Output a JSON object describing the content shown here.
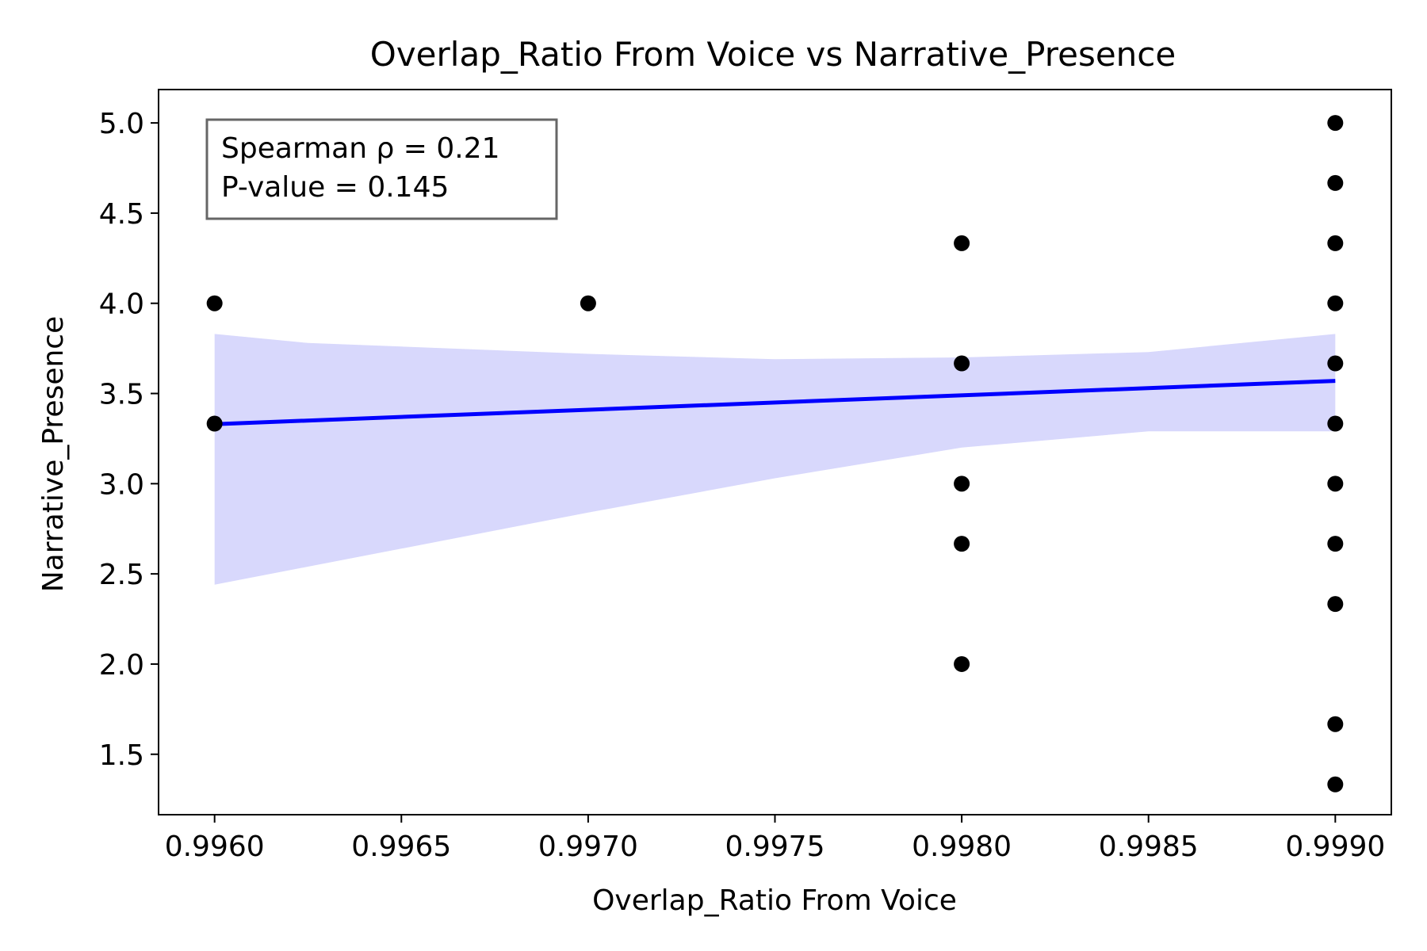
{
  "chart_data": {
    "type": "scatter",
    "title": "Overlap_Ratio From Voice vs Narrative_Presence",
    "xlabel": "Overlap_Ratio From Voice",
    "ylabel": "Narrative_Presence",
    "xlim": [
      0.99585,
      0.99915
    ],
    "ylim": [
      1.165,
      5.185
    ],
    "x_ticks": [
      "0.9960",
      "0.9965",
      "0.9970",
      "0.9975",
      "0.9980",
      "0.9985",
      "0.9990"
    ],
    "y_ticks": [
      "1.5",
      "2.0",
      "2.5",
      "3.0",
      "3.5",
      "4.0",
      "4.5",
      "5.0"
    ],
    "grid": false,
    "points": [
      {
        "x": 0.996,
        "y": 4.0
      },
      {
        "x": 0.996,
        "y": 3.333
      },
      {
        "x": 0.997,
        "y": 4.0
      },
      {
        "x": 0.998,
        "y": 4.333
      },
      {
        "x": 0.998,
        "y": 3.667
      },
      {
        "x": 0.998,
        "y": 3.0
      },
      {
        "x": 0.998,
        "y": 2.667
      },
      {
        "x": 0.998,
        "y": 2.0
      },
      {
        "x": 0.999,
        "y": 5.0
      },
      {
        "x": 0.999,
        "y": 4.667
      },
      {
        "x": 0.999,
        "y": 4.333
      },
      {
        "x": 0.999,
        "y": 4.0
      },
      {
        "x": 0.999,
        "y": 3.667
      },
      {
        "x": 0.999,
        "y": 3.333
      },
      {
        "x": 0.999,
        "y": 3.0
      },
      {
        "x": 0.999,
        "y": 2.667
      },
      {
        "x": 0.999,
        "y": 2.333
      },
      {
        "x": 0.999,
        "y": 1.667
      },
      {
        "x": 0.999,
        "y": 1.333
      }
    ],
    "regression_line": [
      {
        "x": 0.996,
        "y": 3.33
      },
      {
        "x": 0.999,
        "y": 3.57
      }
    ],
    "confidence_band": {
      "upper": [
        {
          "x": 0.996,
          "y": 3.83
        },
        {
          "x": 0.99625,
          "y": 3.78
        },
        {
          "x": 0.9965,
          "y": 3.76
        },
        {
          "x": 0.99675,
          "y": 3.74
        },
        {
          "x": 0.997,
          "y": 3.72
        },
        {
          "x": 0.9975,
          "y": 3.69
        },
        {
          "x": 0.998,
          "y": 3.7
        },
        {
          "x": 0.9985,
          "y": 3.73
        },
        {
          "x": 0.999,
          "y": 3.83
        }
      ],
      "lower": [
        {
          "x": 0.996,
          "y": 2.44
        },
        {
          "x": 0.99625,
          "y": 2.54
        },
        {
          "x": 0.9965,
          "y": 2.64
        },
        {
          "x": 0.99675,
          "y": 2.74
        },
        {
          "x": 0.997,
          "y": 2.84
        },
        {
          "x": 0.9975,
          "y": 3.03
        },
        {
          "x": 0.998,
          "y": 3.2
        },
        {
          "x": 0.9985,
          "y": 3.29
        },
        {
          "x": 0.999,
          "y": 3.29
        }
      ]
    },
    "stats_box": {
      "line1": "Spearman ρ = 0.21",
      "line2": "P-value = 0.145",
      "placement": "top-left"
    },
    "colors": {
      "points": "#000000",
      "line": "#0000ff",
      "band": "#d8d8fc",
      "stats_border": "#666666"
    }
  }
}
